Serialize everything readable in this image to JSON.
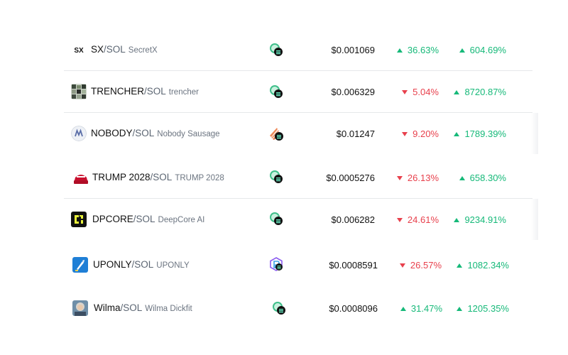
{
  "rows": [
    {
      "symbol": "SX",
      "quote": "/SOL",
      "full_name": "SecretX",
      "icon": "sx-logo",
      "dex": "raydium",
      "price": "$0.001069",
      "change_a": "36.63%",
      "dir_a": "up",
      "change_b": "604.69%",
      "dir_b": "up"
    },
    {
      "symbol": "TRENCHER",
      "quote": "/SOL",
      "full_name": "trencher",
      "icon": "trencher-logo",
      "dex": "raydium",
      "price": "$0.006329",
      "change_a": "5.04%",
      "dir_a": "down",
      "change_b": "8720.87%",
      "dir_b": "up"
    },
    {
      "symbol": "NOBODY",
      "quote": "/SOL",
      "full_name": "Nobody Sausage",
      "icon": "nobody-logo",
      "dex": "orca",
      "price": "$0.01247",
      "change_a": "9.20%",
      "dir_a": "down",
      "change_b": "1789.39%",
      "dir_b": "up"
    },
    {
      "symbol": "TRUMP 2028",
      "quote": "/SOL",
      "full_name": "TRUMP 2028",
      "icon": "trump-logo",
      "dex": "raydium",
      "price": "$0.0005276",
      "change_a": "26.13%",
      "dir_a": "down",
      "change_b": "658.30%",
      "dir_b": "up"
    },
    {
      "symbol": "DPCORE",
      "quote": "/SOL",
      "full_name": "DeepCore AI",
      "icon": "dpcore-logo",
      "dex": "raydium",
      "price": "$0.006282",
      "change_a": "24.61%",
      "dir_a": "down",
      "change_b": "9234.91%",
      "dir_b": "up"
    },
    {
      "symbol": "UPONLY",
      "quote": "/SOL",
      "full_name": "UPONLY",
      "icon": "uponly-logo",
      "dex": "pumpswap",
      "price": "$0.0008591",
      "change_a": "26.57%",
      "dir_a": "down",
      "change_b": "1082.34%",
      "dir_b": "up"
    },
    {
      "symbol": "Wilma",
      "quote": "/SOL",
      "full_name": "Wilma Dickfit",
      "icon": "wilma-logo",
      "dex": "raydium",
      "price": "$0.0008096",
      "change_a": "31.47%",
      "dir_a": "up",
      "change_b": "1205.35%",
      "dir_b": "up"
    }
  ],
  "colors": {
    "up": "#16b979",
    "down": "#e8414d",
    "separator": "#e6e8ea"
  }
}
